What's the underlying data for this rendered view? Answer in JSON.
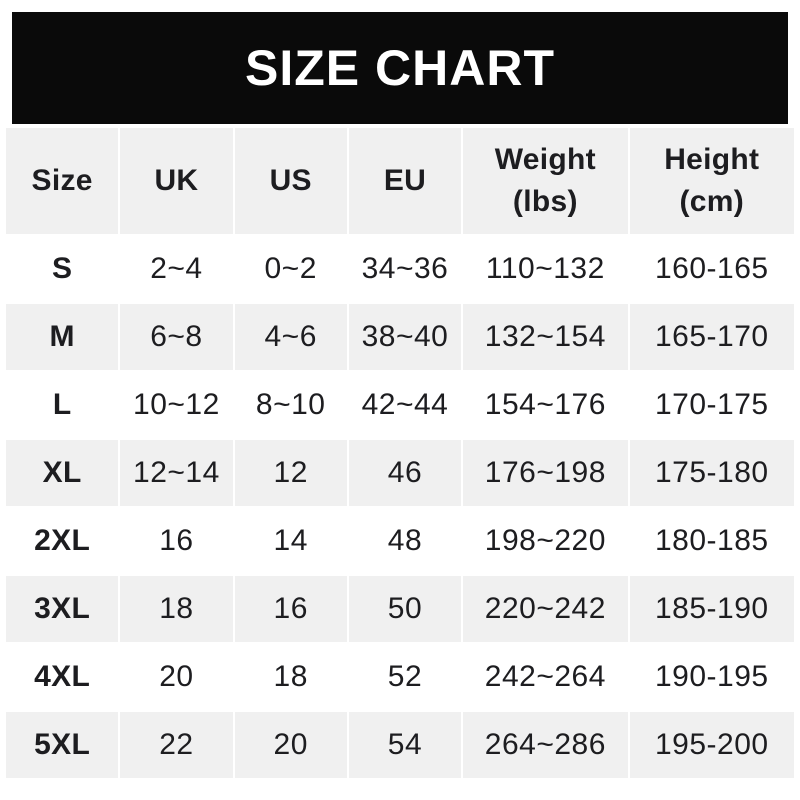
{
  "banner": {
    "title": "SIZE CHART"
  },
  "colors": {
    "banner_bg": "#0a0a0a",
    "banner_text": "#ffffff",
    "row_alt_bg": "#f0f0f0",
    "row_bg": "#ffffff",
    "text": "#1d1d20"
  },
  "table": {
    "headers": [
      "Size",
      "UK",
      "US",
      "EU",
      "Weight\n(lbs)",
      "Height\n(cm)"
    ],
    "rows": [
      {
        "size": "S",
        "uk": "2~4",
        "us": "0~2",
        "eu": "34~36",
        "weight_lbs": "110~132",
        "height_cm": "160-165"
      },
      {
        "size": "M",
        "uk": "6~8",
        "us": "4~6",
        "eu": "38~40",
        "weight_lbs": "132~154",
        "height_cm": "165-170"
      },
      {
        "size": "L",
        "uk": "10~12",
        "us": "8~10",
        "eu": "42~44",
        "weight_lbs": "154~176",
        "height_cm": "170-175"
      },
      {
        "size": "XL",
        "uk": "12~14",
        "us": "12",
        "eu": "46",
        "weight_lbs": "176~198",
        "height_cm": "175-180"
      },
      {
        "size": "2XL",
        "uk": "16",
        "us": "14",
        "eu": "48",
        "weight_lbs": "198~220",
        "height_cm": "180-185"
      },
      {
        "size": "3XL",
        "uk": "18",
        "us": "16",
        "eu": "50",
        "weight_lbs": "220~242",
        "height_cm": "185-190"
      },
      {
        "size": "4XL",
        "uk": "20",
        "us": "18",
        "eu": "52",
        "weight_lbs": "242~264",
        "height_cm": "190-195"
      },
      {
        "size": "5XL",
        "uk": "22",
        "us": "20",
        "eu": "54",
        "weight_lbs": "264~286",
        "height_cm": "195-200"
      }
    ]
  },
  "chart_data": {
    "type": "table",
    "title": "SIZE CHART",
    "columns": [
      "Size",
      "UK",
      "US",
      "EU",
      "Weight (lbs)",
      "Height (cm)"
    ],
    "rows": [
      [
        "S",
        "2~4",
        "0~2",
        "34~36",
        "110~132",
        "160-165"
      ],
      [
        "M",
        "6~8",
        "4~6",
        "38~40",
        "132~154",
        "165-170"
      ],
      [
        "L",
        "10~12",
        "8~10",
        "42~44",
        "154~176",
        "170-175"
      ],
      [
        "XL",
        "12~14",
        "12",
        "46",
        "176~198",
        "175-180"
      ],
      [
        "2XL",
        "16",
        "14",
        "48",
        "198~220",
        "180-185"
      ],
      [
        "3XL",
        "18",
        "16",
        "50",
        "220~242",
        "185-190"
      ],
      [
        "4XL",
        "20",
        "18",
        "52",
        "242~264",
        "190-195"
      ],
      [
        "5XL",
        "22",
        "20",
        "54",
        "264~286",
        "195-200"
      ]
    ],
    "layout_hints": {
      "header_background": "#f0f0f0",
      "zebra_striping": "rows M, XL, 3XL, 5XL shaded #f0f0f0",
      "alignment": "all cells centered",
      "size_column_bold": true
    }
  }
}
